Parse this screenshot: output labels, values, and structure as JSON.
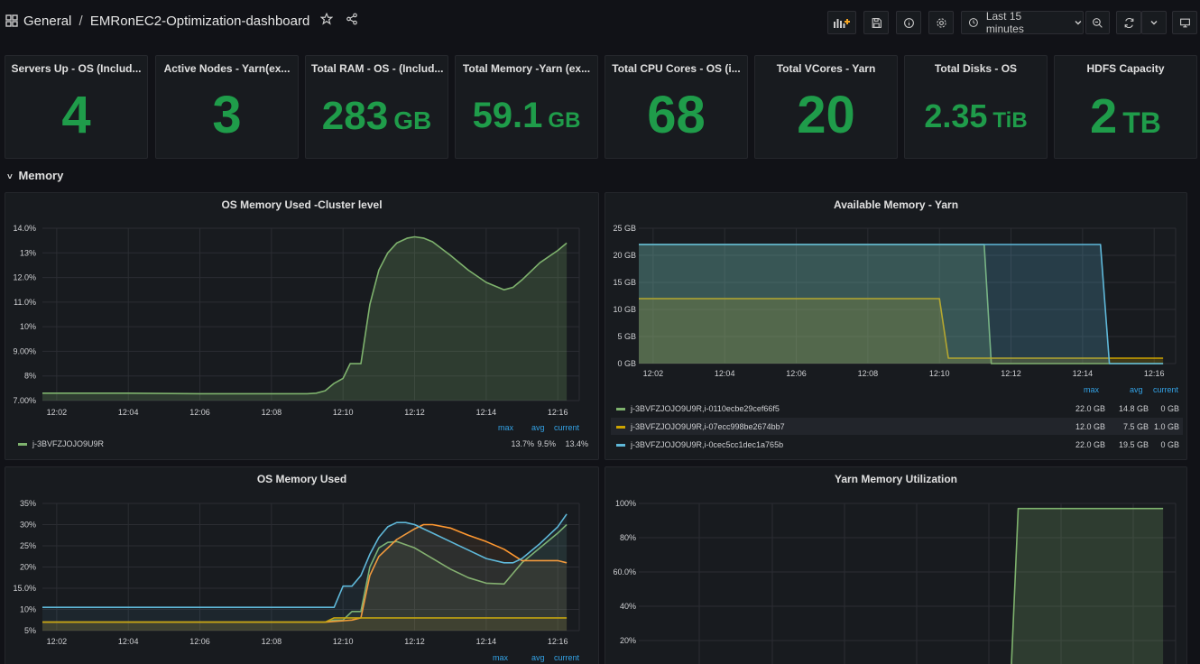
{
  "header": {
    "folder": "General",
    "separator": "/",
    "dashboard_title": "EMRonEC2-Optimization-dashboard",
    "time_range": "Last 15 minutes"
  },
  "stats": [
    {
      "title": "Servers Up - OS (Includ...",
      "value": "4",
      "unit": ""
    },
    {
      "title": "Active Nodes - Yarn(ex...",
      "value": "3",
      "unit": ""
    },
    {
      "title": "Total RAM - OS - (Includ...",
      "value": "283",
      "unit": "GB"
    },
    {
      "title": "Total Memory -Yarn (ex...",
      "value": "59.1",
      "unit": "GB"
    },
    {
      "title": "Total CPU Cores - OS (i...",
      "value": "68",
      "unit": ""
    },
    {
      "title": "Total VCores - Yarn",
      "value": "20",
      "unit": ""
    },
    {
      "title": "Total Disks - OS",
      "value": "2.35",
      "unit": "TiB"
    },
    {
      "title": "HDFS Capacity",
      "value": "2",
      "unit": "TB"
    }
  ],
  "row": {
    "title": "Memory"
  },
  "colors": {
    "green": "#7eb26d",
    "yellow": "#cca300",
    "orange": "#ff9830",
    "blue": "#5fb8d9",
    "stat_green": "#1f9c4a",
    "legend_head": "#33a2e5"
  },
  "panels": {
    "os_mem_cluster": {
      "title": "OS Memory Used -Cluster level",
      "legend": {
        "headers": [
          "max",
          "avg",
          "current"
        ],
        "rows": [
          {
            "name": "j-3BVFZJOJO9U9R",
            "max": "13.7%",
            "avg": "9.5%",
            "current": "13.4%"
          }
        ]
      }
    },
    "avail_mem_yarn": {
      "title": "Available Memory - Yarn",
      "legend": {
        "headers": [
          "max",
          "avg",
          "current"
        ],
        "rows": [
          {
            "name": "j-3BVFZJOJO9U9R,i-0110ecbe29cef66f5",
            "max": "22.0 GB",
            "avg": "14.8 GB",
            "current": "0 GB"
          },
          {
            "name": "j-3BVFZJOJO9U9R,i-07ecc998be2674bb7",
            "max": "12.0 GB",
            "avg": "7.5 GB",
            "current": "1.0 GB"
          },
          {
            "name": "j-3BVFZJOJO9U9R,i-0cec5cc1dec1a765b",
            "max": "22.0 GB",
            "avg": "19.5 GB",
            "current": "0 GB"
          }
        ]
      }
    },
    "os_mem_used": {
      "title": "OS Memory Used",
      "legend": {
        "headers": [
          "max",
          "avg",
          "current"
        ],
        "rows": []
      }
    },
    "yarn_mem_util": {
      "title": "Yarn Memory Utilization"
    }
  },
  "chart_data": [
    {
      "type": "area",
      "title": "OS Memory Used -Cluster level",
      "x_ticks": [
        "12:02",
        "12:04",
        "12:06",
        "12:08",
        "12:10",
        "12:12",
        "12:14",
        "12:16"
      ],
      "y_ticks": [
        "7.00%",
        "8%",
        "9.00%",
        "10%",
        "11.0%",
        "12.0%",
        "13%",
        "14.0%"
      ],
      "ylim": [
        7.0,
        14.0
      ],
      "xlim": [
        1.6,
        16.6
      ],
      "series": [
        {
          "name": "j-3BVFZJOJO9U9R",
          "color": "#7eb26d",
          "x": [
            1.6,
            4,
            6,
            8,
            9,
            9.25,
            9.5,
            9.75,
            10,
            10.2,
            10.5,
            10.75,
            11,
            11.25,
            11.5,
            11.8,
            12.0,
            12.25,
            12.5,
            13,
            13.5,
            14,
            14.5,
            14.75,
            15,
            15.5,
            16,
            16.25
          ],
          "y": [
            7.3,
            7.3,
            7.28,
            7.28,
            7.28,
            7.3,
            7.4,
            7.7,
            7.9,
            8.5,
            8.5,
            10.9,
            12.3,
            13.0,
            13.4,
            13.6,
            13.65,
            13.6,
            13.45,
            12.9,
            12.3,
            11.8,
            11.5,
            11.6,
            11.9,
            12.6,
            13.1,
            13.4
          ]
        }
      ]
    },
    {
      "type": "area",
      "title": "Available Memory - Yarn",
      "x_ticks": [
        "12:02",
        "12:04",
        "12:06",
        "12:08",
        "12:10",
        "12:12",
        "12:14",
        "12:16"
      ],
      "y_ticks": [
        "0 GB",
        "5 GB",
        "10 GB",
        "15 GB",
        "20 GB",
        "25 GB"
      ],
      "ylim": [
        0,
        25
      ],
      "xlim": [
        1.6,
        16.6
      ],
      "series": [
        {
          "name": "j-3BVFZJOJO9U9R,i-0110ecbe29cef66f5",
          "color": "#7eb26d",
          "x": [
            1.6,
            11.25,
            11.45,
            16.25
          ],
          "y": [
            22,
            22,
            0,
            0
          ]
        },
        {
          "name": "j-3BVFZJOJO9U9R,i-07ecc998be2674bb7",
          "color": "#cca300",
          "x": [
            1.6,
            10.0,
            10.25,
            16.25
          ],
          "y": [
            12,
            12,
            1,
            1
          ]
        },
        {
          "name": "j-3BVFZJOJO9U9R,i-0cec5cc1dec1a765b",
          "color": "#5fb8d9",
          "x": [
            1.6,
            14.5,
            14.75,
            16.25
          ],
          "y": [
            22,
            22,
            0,
            0
          ]
        }
      ]
    },
    {
      "type": "line",
      "title": "OS Memory Used",
      "x_ticks": [
        "12:02",
        "12:04",
        "12:06",
        "12:08",
        "12:10",
        "12:12",
        "12:14",
        "12:16"
      ],
      "y_ticks": [
        "5%",
        "10%",
        "15.0%",
        "20%",
        "25%",
        "30%",
        "35%"
      ],
      "ylim": [
        5,
        35
      ],
      "xlim": [
        1.6,
        16.6
      ],
      "series": [
        {
          "color": "#7eb26d",
          "x": [
            1.6,
            9.5,
            9.75,
            10,
            10.25,
            10.5,
            10.75,
            11,
            11.25,
            11.5,
            12,
            12.5,
            13,
            13.5,
            14,
            14.5,
            14.75,
            15,
            15.5,
            16,
            16.25
          ],
          "y": [
            7,
            7,
            7.5,
            7.5,
            9.5,
            9.5,
            20,
            24.5,
            25.8,
            26,
            24.5,
            22,
            19.5,
            17.5,
            16.2,
            16,
            18.5,
            21,
            24.5,
            28,
            30
          ]
        },
        {
          "color": "#ff9830",
          "x": [
            1.6,
            9.5,
            10.25,
            10.5,
            10.75,
            11,
            11.5,
            12,
            12.25,
            12.5,
            13,
            13.5,
            14,
            14.5,
            15,
            15.5,
            16,
            16.25
          ],
          "y": [
            7,
            7,
            7.5,
            8,
            18,
            22.5,
            26.5,
            29,
            30,
            30,
            29.2,
            27.5,
            26,
            24.2,
            21.5,
            21.5,
            21.5,
            21
          ]
        },
        {
          "color": "#cca300",
          "x": [
            1.6,
            9.5,
            9.75,
            16.25
          ],
          "y": [
            7,
            7,
            8,
            8
          ]
        },
        {
          "color": "#5fb8d9",
          "x": [
            1.6,
            8,
            9.75,
            10,
            10.25,
            10.5,
            10.75,
            11,
            11.25,
            11.5,
            11.75,
            12,
            12.5,
            13,
            13.5,
            14,
            14.5,
            14.75,
            15,
            15.5,
            16,
            16.25
          ],
          "y": [
            10.5,
            10.5,
            10.5,
            15.5,
            15.5,
            18,
            23,
            27,
            29.5,
            30.5,
            30.5,
            30,
            28,
            26,
            24,
            22,
            21,
            21,
            22,
            25.5,
            29.5,
            32.5
          ]
        }
      ]
    },
    {
      "type": "area",
      "title": "Yarn Memory Utilization",
      "x_ticks": [],
      "y_ticks": [
        "20%",
        "40%",
        "60.0%",
        "80%",
        "100%"
      ],
      "ylim": [
        0,
        100
      ],
      "series": [
        {
          "color": "#7eb26d",
          "x": [
            0,
            12.0,
            12.2,
            16.25
          ],
          "y": [
            0,
            0,
            97,
            97
          ]
        }
      ]
    }
  ]
}
